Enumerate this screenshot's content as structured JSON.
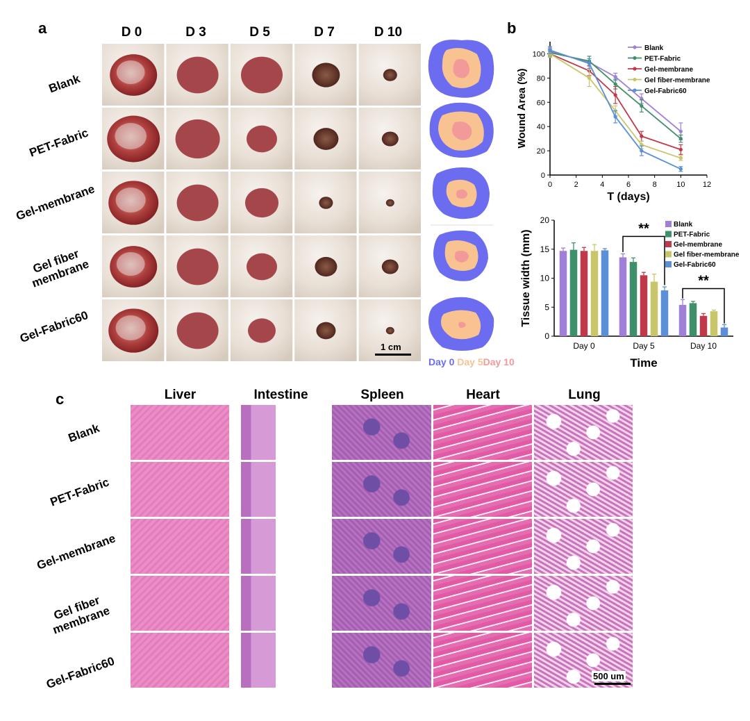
{
  "panel_a": {
    "letter": "a",
    "columns": [
      "D 0",
      "D 3",
      "D 5",
      "D 7",
      "D 10"
    ],
    "rows": [
      "Blank",
      "PET-Fabric",
      "Gel-membrane",
      "Gel fiber\nmembrane",
      "Gel-Fabric60"
    ],
    "scale_bar": "1 cm",
    "trace_legend": {
      "day0": "Day 0",
      "day5": "Day 5",
      "day10": "Day 10",
      "day0_color": "#6b6cf0",
      "day5_color": "#f8c391",
      "day10_color": "#f29a9a"
    }
  },
  "panel_b": {
    "letter": "b"
  },
  "panel_c": {
    "letter": "c",
    "columns": [
      "Liver",
      "Intestine",
      "Spleen",
      "Heart",
      "Lung"
    ],
    "rows": [
      "Blank",
      "PET-Fabric",
      "Gel-membrane",
      "Gel fiber\nmembrane",
      "Gel-Fabric60"
    ],
    "scale_bar": "500 um"
  },
  "chart_data": [
    {
      "type": "line",
      "xlabel": "T (days)",
      "ylabel": "Wound Area (%)",
      "xlim": [
        0,
        12
      ],
      "ylim": [
        0,
        110
      ],
      "xticks": [
        0,
        2,
        4,
        6,
        8,
        10,
        12
      ],
      "yticks": [
        0,
        20,
        40,
        60,
        80,
        100
      ],
      "x": [
        0,
        3,
        5,
        7,
        10
      ],
      "legend_position": "top-right",
      "series": [
        {
          "name": "Blank",
          "color": "#a07fd6",
          "values": [
            102,
            93,
            81,
            63,
            36
          ],
          "err": [
            3,
            3,
            3,
            4,
            7
          ]
        },
        {
          "name": "PET-Fabric",
          "color": "#3f8f6a",
          "values": [
            101,
            94,
            75,
            57,
            30
          ],
          "err": [
            3,
            4,
            4,
            5,
            3
          ]
        },
        {
          "name": "Gel-membrane",
          "color": "#c0394a",
          "values": [
            100,
            86,
            66,
            32,
            21
          ],
          "err": [
            3,
            4,
            7,
            4,
            4
          ]
        },
        {
          "name": "Gel fiber-membrane",
          "color": "#c9c56a",
          "values": [
            100,
            80,
            53,
            25,
            14
          ],
          "err": [
            3,
            7,
            4,
            3,
            2
          ]
        },
        {
          "name": "Gel-Fabric60",
          "color": "#5b8fd6",
          "values": [
            103,
            92,
            48,
            20,
            5
          ],
          "err": [
            3,
            4,
            5,
            4,
            2
          ]
        }
      ]
    },
    {
      "type": "bar",
      "xlabel": "Time",
      "ylabel": "Tissue width (mm)",
      "ylim": [
        0,
        20
      ],
      "yticks": [
        0,
        5,
        10,
        15,
        20
      ],
      "categories": [
        "Day 0",
        "Day 5",
        "Day 10"
      ],
      "legend_position": "top-right",
      "annotations": [
        "**",
        "**"
      ],
      "series": [
        {
          "name": "Blank",
          "color": "#a07fd6",
          "values": [
            14.7,
            13.6,
            5.4
          ],
          "err": [
            0.5,
            0.6,
            0.9
          ]
        },
        {
          "name": "PET-Fabric",
          "color": "#3f8f6a",
          "values": [
            14.9,
            12.8,
            5.7
          ],
          "err": [
            1.2,
            0.7,
            0.3
          ]
        },
        {
          "name": "Gel-membrane",
          "color": "#c0394a",
          "values": [
            14.7,
            10.5,
            3.5
          ],
          "err": [
            0.6,
            0.5,
            0.4
          ]
        },
        {
          "name": "Gel fiber-membrane",
          "color": "#c9c56a",
          "values": [
            14.7,
            9.4,
            4.3
          ],
          "err": [
            1.1,
            1.3,
            0.2
          ]
        },
        {
          "name": "Gel-Fabric60",
          "color": "#5b8fd6",
          "values": [
            14.8,
            7.9,
            1.5
          ],
          "err": [
            0.3,
            0.6,
            0.5
          ]
        }
      ]
    }
  ]
}
